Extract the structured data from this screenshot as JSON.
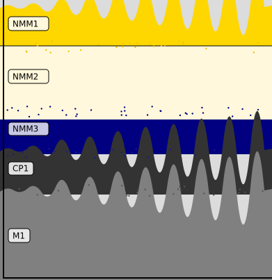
{
  "layers": [
    {
      "label": "NMM1"
    },
    {
      "label": "NMM2"
    },
    {
      "label": "NMM3"
    },
    {
      "label": "CP1"
    },
    {
      "label": "M1"
    }
  ]
}
